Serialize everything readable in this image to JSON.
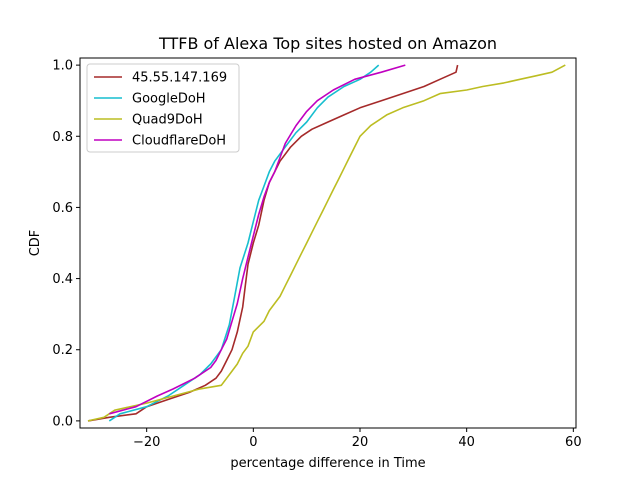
{
  "chart_data": {
    "type": "line",
    "title": "TTFB of Alexa Top sites hosted on Amazon",
    "xlabel": "percentage difference in Time",
    "ylabel": "CDF",
    "xlim": [
      -32.5,
      60.5
    ],
    "ylim": [
      -0.02,
      1.02
    ],
    "xticks": [
      -20,
      0,
      20,
      40,
      60
    ],
    "xtick_labels": [
      "−20",
      "0",
      "20",
      "40",
      "60"
    ],
    "yticks": [
      0.0,
      0.2,
      0.4,
      0.6,
      0.8,
      1.0
    ],
    "ytick_labels": [
      "0.0",
      "0.2",
      "0.4",
      "0.6",
      "0.8",
      "1.0"
    ],
    "grid": false,
    "legend_position": "top-left",
    "series": [
      {
        "name": "45.55.147.169",
        "color": "#a52a2a",
        "points": [
          [
            -31,
            0.0
          ],
          [
            -27,
            0.01
          ],
          [
            -22,
            0.02
          ],
          [
            -20,
            0.04
          ],
          [
            -16,
            0.06
          ],
          [
            -12,
            0.08
          ],
          [
            -9,
            0.1
          ],
          [
            -7,
            0.12
          ],
          [
            -6,
            0.14
          ],
          [
            -5,
            0.17
          ],
          [
            -4,
            0.2
          ],
          [
            -3,
            0.25
          ],
          [
            -2,
            0.32
          ],
          [
            -1.5,
            0.38
          ],
          [
            -1,
            0.44
          ],
          [
            0,
            0.5
          ],
          [
            1,
            0.55
          ],
          [
            2,
            0.62
          ],
          [
            3,
            0.67
          ],
          [
            4,
            0.7
          ],
          [
            5,
            0.73
          ],
          [
            7,
            0.77
          ],
          [
            9,
            0.8
          ],
          [
            11,
            0.82
          ],
          [
            14,
            0.84
          ],
          [
            17,
            0.86
          ],
          [
            20,
            0.88
          ],
          [
            24,
            0.9
          ],
          [
            28,
            0.92
          ],
          [
            32,
            0.94
          ],
          [
            35,
            0.96
          ],
          [
            38,
            0.98
          ],
          [
            38.3,
            1.0
          ]
        ]
      },
      {
        "name": "GoogleDoH",
        "color": "#17becf",
        "points": [
          [
            -27,
            0.0
          ],
          [
            -25,
            0.02
          ],
          [
            -20,
            0.04
          ],
          [
            -16,
            0.07
          ],
          [
            -13,
            0.1
          ],
          [
            -10,
            0.13
          ],
          [
            -8,
            0.16
          ],
          [
            -6,
            0.2
          ],
          [
            -4.5,
            0.27
          ],
          [
            -3.5,
            0.35
          ],
          [
            -2.5,
            0.43
          ],
          [
            -1,
            0.5
          ],
          [
            0,
            0.56
          ],
          [
            1,
            0.62
          ],
          [
            2,
            0.66
          ],
          [
            3,
            0.7
          ],
          [
            4,
            0.73
          ],
          [
            6,
            0.77
          ],
          [
            8,
            0.81
          ],
          [
            10,
            0.84
          ],
          [
            12,
            0.88
          ],
          [
            14,
            0.91
          ],
          [
            17,
            0.94
          ],
          [
            20,
            0.96
          ],
          [
            22,
            0.98
          ],
          [
            23.5,
            1.0
          ]
        ]
      },
      {
        "name": "Quad9DoH",
        "color": "#bcbd22",
        "points": [
          [
            -31,
            0.0
          ],
          [
            -28,
            0.01
          ],
          [
            -26,
            0.03
          ],
          [
            -20,
            0.05
          ],
          [
            -15,
            0.07
          ],
          [
            -10,
            0.09
          ],
          [
            -6,
            0.1
          ],
          [
            -5,
            0.12
          ],
          [
            -4,
            0.14
          ],
          [
            -3,
            0.16
          ],
          [
            -2,
            0.19
          ],
          [
            -1,
            0.21
          ],
          [
            0,
            0.25
          ],
          [
            2,
            0.28
          ],
          [
            3,
            0.31
          ],
          [
            5,
            0.35
          ],
          [
            6,
            0.38
          ],
          [
            7,
            0.41
          ],
          [
            8,
            0.44
          ],
          [
            9,
            0.47
          ],
          [
            10,
            0.5
          ],
          [
            11,
            0.53
          ],
          [
            12,
            0.56
          ],
          [
            13,
            0.59
          ],
          [
            14,
            0.62
          ],
          [
            15,
            0.65
          ],
          [
            16,
            0.68
          ],
          [
            17,
            0.71
          ],
          [
            18,
            0.74
          ],
          [
            19,
            0.77
          ],
          [
            20,
            0.8
          ],
          [
            22,
            0.83
          ],
          [
            25,
            0.86
          ],
          [
            28,
            0.88
          ],
          [
            32,
            0.9
          ],
          [
            35,
            0.92
          ],
          [
            40,
            0.93
          ],
          [
            43,
            0.94
          ],
          [
            47,
            0.95
          ],
          [
            50,
            0.96
          ],
          [
            53,
            0.97
          ],
          [
            56,
            0.98
          ],
          [
            58.5,
            1.0
          ]
        ]
      },
      {
        "name": "CloudflareDoH",
        "color": "#c000c0",
        "points": [
          [
            -27,
            0.02
          ],
          [
            -22,
            0.04
          ],
          [
            -18,
            0.07
          ],
          [
            -15,
            0.09
          ],
          [
            -11,
            0.12
          ],
          [
            -8,
            0.15
          ],
          [
            -7,
            0.17
          ],
          [
            -6,
            0.2
          ],
          [
            -5,
            0.23
          ],
          [
            -4,
            0.28
          ],
          [
            -3,
            0.33
          ],
          [
            -2,
            0.4
          ],
          [
            -1,
            0.46
          ],
          [
            0,
            0.52
          ],
          [
            1,
            0.58
          ],
          [
            2,
            0.63
          ],
          [
            3,
            0.67
          ],
          [
            4,
            0.7
          ],
          [
            5,
            0.74
          ],
          [
            6,
            0.78
          ],
          [
            8,
            0.83
          ],
          [
            10,
            0.87
          ],
          [
            12,
            0.9
          ],
          [
            15,
            0.93
          ],
          [
            19,
            0.96
          ],
          [
            24,
            0.98
          ],
          [
            28.5,
            1.0
          ]
        ]
      }
    ]
  }
}
